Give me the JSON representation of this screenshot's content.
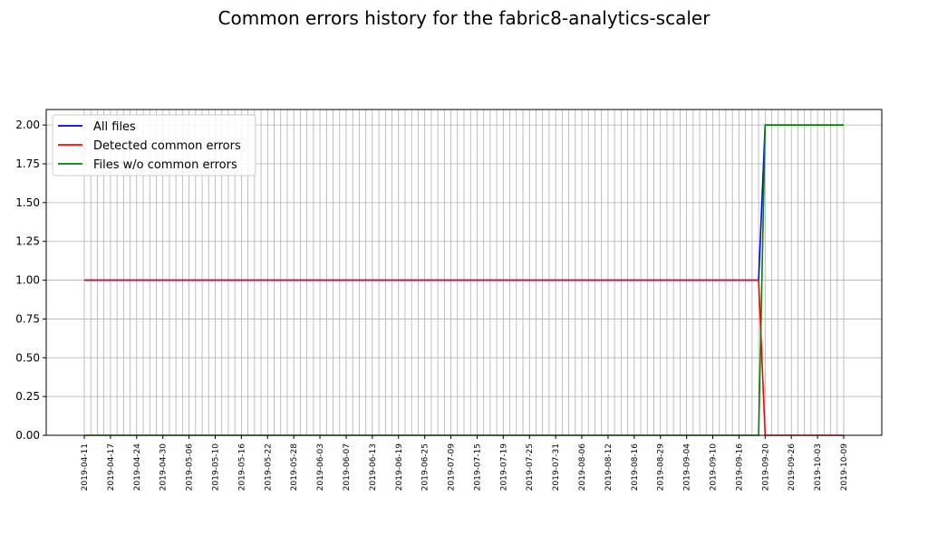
{
  "chart_data": {
    "type": "line",
    "title": "Common errors history for the fabric8-analytics-scaler",
    "xlabel": "",
    "ylabel": "",
    "ylim": [
      0,
      2.1
    ],
    "yticks": [
      "0.00",
      "0.25",
      "0.50",
      "0.75",
      "1.00",
      "1.25",
      "1.50",
      "1.75",
      "2.00"
    ],
    "grid": true,
    "legend_position": "top-left",
    "x_labeled_ticks": [
      "2019-04-11",
      "2019-04-17",
      "2019-04-24",
      "2019-04-30",
      "2019-05-06",
      "2019-05-10",
      "2019-05-16",
      "2019-05-22",
      "2019-05-28",
      "2019-06-03",
      "2019-06-07",
      "2019-06-13",
      "2019-06-19",
      "2019-06-25",
      "2019-07-09",
      "2019-07-15",
      "2019-07-19",
      "2019-07-25",
      "2019-07-31",
      "2019-08-06",
      "2019-08-12",
      "2019-08-16",
      "2019-08-29",
      "2019-09-04",
      "2019-09-10",
      "2019-09-16",
      "2019-09-20",
      "2019-09-26",
      "2019-10-03",
      "2019-10-09"
    ],
    "points_per_labeled_tick": 4,
    "series": [
      {
        "name": "All files",
        "color": "#0000ff",
        "values_before_change": 1,
        "values_after_change": 2
      },
      {
        "name": "Detected common errors",
        "color": "#ff0000",
        "values_before_change": 1,
        "values_after_change": 0
      },
      {
        "name": "Files w/o common errors",
        "color": "#008000",
        "values_before_change": 0,
        "values_after_change": 2
      }
    ],
    "change_between": [
      "2019-09-19",
      "2019-09-20"
    ]
  }
}
